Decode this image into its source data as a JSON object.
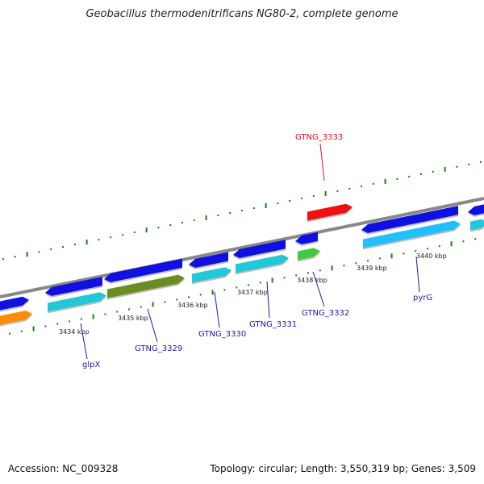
{
  "title": "Geobacillus thermodenitrificans NG80-2, complete genome",
  "footer": {
    "accession": "Accession: NC_009328",
    "stats": "Topology: circular; Length: 3,550,319 bp; Genes: 3,509"
  },
  "scale_labels": [
    "3434 kbp",
    "3435 kbp",
    "3436 kbp",
    "3437 kbp",
    "3438 kbp",
    "3439 kbp",
    "3440 kbp"
  ],
  "gene_labels": [
    {
      "id": "glpX",
      "text": "glpX",
      "color": "#1a1aa8"
    },
    {
      "id": "gtng3329",
      "text": "GTNG_3329",
      "color": "#1a1aa8"
    },
    {
      "id": "gtng3330",
      "text": "GTNG_3330",
      "color": "#1a1aa8"
    },
    {
      "id": "gtng3331",
      "text": "GTNG_3331",
      "color": "#1a1aa8"
    },
    {
      "id": "gtng3332",
      "text": "GTNG_3332",
      "color": "#1a1aa8"
    },
    {
      "id": "gtng3333",
      "text": "GTNG_3333",
      "color": "#e01010"
    },
    {
      "id": "pyrG",
      "text": "pyrG",
      "color": "#1a1aa8"
    }
  ],
  "colors": {
    "cds": "#1010e0",
    "cds_highlight": "#ee1111",
    "rna_cyan": "#22c8d8",
    "rna_light_blue": "#22bfff",
    "green": "#44c844",
    "olive": "#6b8e23",
    "orange": "#ff8c00",
    "backbone": "#888888",
    "tick": "#1a7a1a"
  }
}
